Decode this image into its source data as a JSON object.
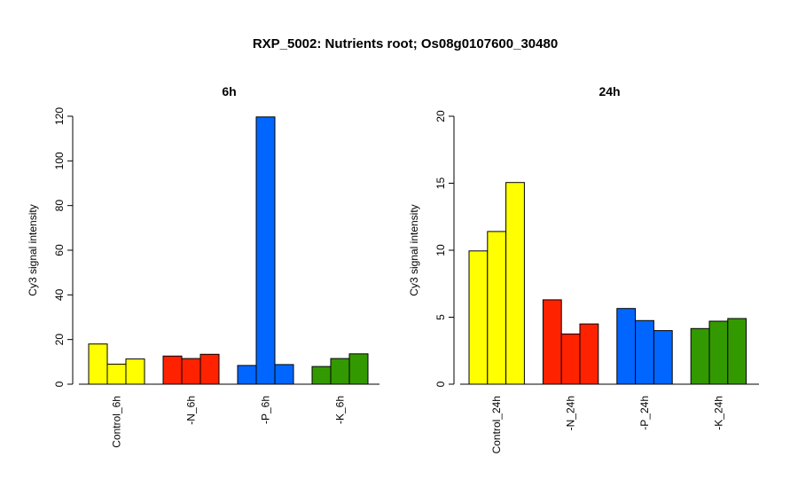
{
  "title": "RXP_5002: Nutrients root; Os08g0107600_30480",
  "chart_data": [
    {
      "type": "bar",
      "title": "6h",
      "ylabel": "Cy3 signal intensity",
      "ylim": [
        0,
        120
      ],
      "yticks": [
        0,
        20,
        40,
        60,
        80,
        100,
        120
      ],
      "categories": [
        "Control_6h",
        "-N_6h",
        "-P_6h",
        "-K_6h"
      ],
      "colors": [
        "#ffff00",
        "#ff2200",
        "#0066ff",
        "#339900"
      ],
      "values": [
        [
          18,
          9,
          11.3
        ],
        [
          12.6,
          11.5,
          13.4
        ],
        [
          8.4,
          119.7,
          8.8
        ],
        [
          7.9,
          11.5,
          13.6
        ]
      ]
    },
    {
      "type": "bar",
      "title": "24h",
      "ylabel": "Cy3 signal intensity",
      "ylim": [
        0,
        20
      ],
      "yticks": [
        0,
        5,
        10,
        15,
        20
      ],
      "categories": [
        "Control_24h",
        "-N_24h",
        "-P_24h",
        "-K_24h"
      ],
      "colors": [
        "#ffff00",
        "#ff2200",
        "#0066ff",
        "#339900"
      ],
      "values": [
        [
          9.95,
          11.4,
          15.05
        ],
        [
          6.3,
          3.75,
          4.5
        ],
        [
          5.65,
          4.75,
          4.0
        ],
        [
          4.15,
          4.7,
          4.9
        ]
      ]
    }
  ]
}
